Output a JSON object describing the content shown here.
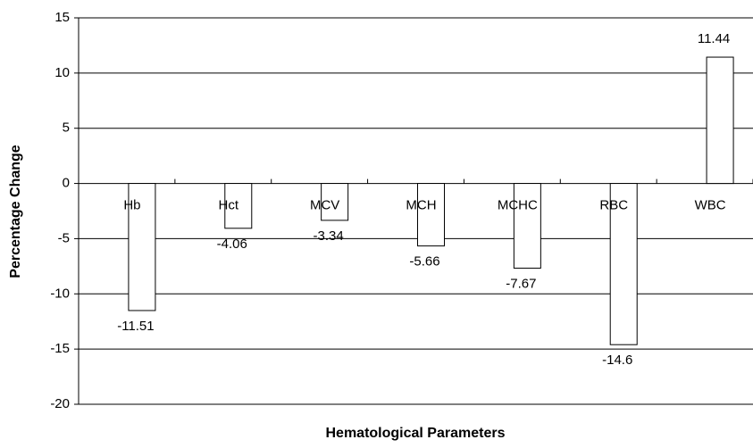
{
  "chart_data": {
    "type": "bar",
    "x_label": "Hematological Parameters",
    "y_label": "Percentage Change",
    "categories": [
      "Hb",
      "Hct",
      "MCV",
      "MCH",
      "MCHC",
      "RBC",
      "WBC"
    ],
    "values": [
      -11.51,
      -4.06,
      -3.34,
      -5.66,
      -7.67,
      -14.6,
      11.44
    ],
    "color": "#ffffff",
    "ylim": [
      -20,
      15
    ],
    "yticks": [
      -20,
      -15,
      -10,
      -5,
      0,
      5,
      10,
      15
    ],
    "grid": true
  }
}
